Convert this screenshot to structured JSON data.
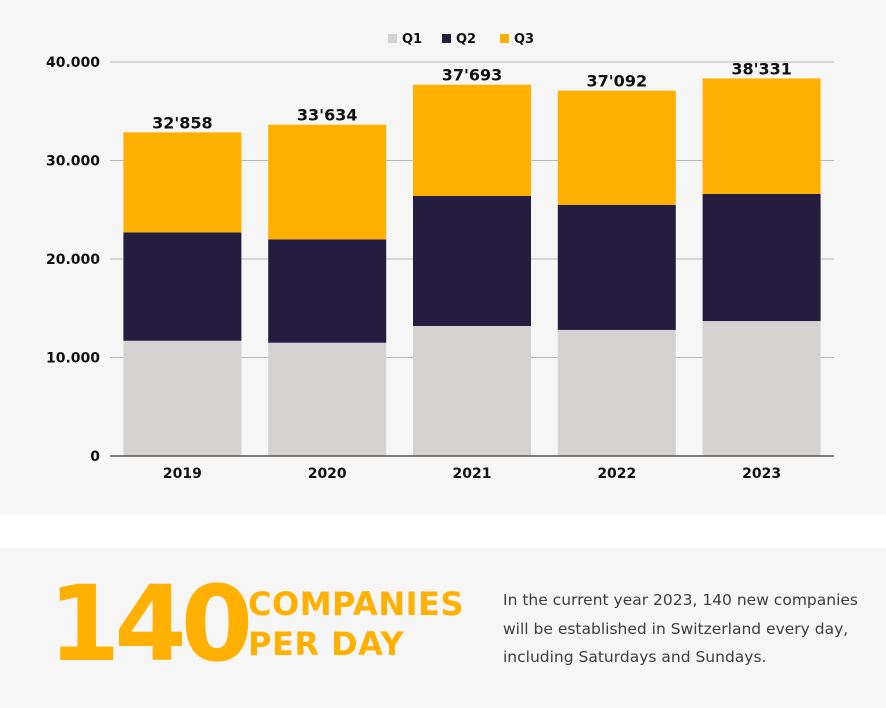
{
  "chart_data": {
    "type": "bar",
    "stacked": true,
    "categories": [
      "2019",
      "2020",
      "2021",
      "2022",
      "2023"
    ],
    "series": [
      {
        "name": "Q1",
        "color": "#d4d3d1",
        "values": [
          11700,
          11500,
          13200,
          12800,
          13700
        ]
      },
      {
        "name": "Q2",
        "color": "#251d40",
        "values": [
          11000,
          10500,
          13200,
          12700,
          12900
        ]
      },
      {
        "name": "Q3",
        "color": "#ffb000",
        "values": [
          10158,
          11634,
          11293,
          11592,
          11731
        ]
      }
    ],
    "totals": [
      32858,
      33634,
      37693,
      37092,
      38331
    ],
    "total_labels": [
      "32'858",
      "33'634",
      "37'693",
      "37'092",
      "38'331"
    ],
    "ylim": [
      0,
      40000
    ],
    "yticks": [
      0,
      10000,
      20000,
      30000,
      40000
    ],
    "ytick_labels": [
      "0",
      "10.000",
      "20.000",
      "30.000",
      "40.000"
    ],
    "grid": true,
    "legend_position": "top-center",
    "title": "",
    "xlabel": "",
    "ylabel": ""
  },
  "stat": {
    "number": "140",
    "headline_line1": "COMPANIES",
    "headline_line2": "PER DAY",
    "description_lines": [
      "In the current year 2023, 140 new companies",
      "will be established in Switzerland every day,",
      "including Saturdays and Sundays."
    ]
  },
  "colors": {
    "accent": "#ffb000",
    "dark": "#251d40",
    "light": "#d4d3d1"
  }
}
